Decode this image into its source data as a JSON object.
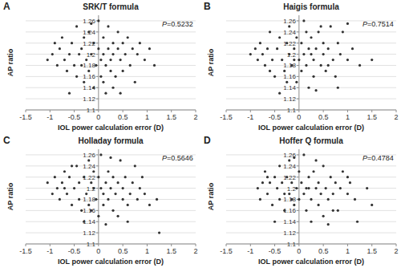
{
  "chart_data": [
    {
      "type": "scatter",
      "panel_label": "A",
      "title": "SRK/T formula",
      "annotation": "P=0.5232",
      "x_label": "IOL power calculation error (D)",
      "y_label": "AP ratio",
      "color": "#333333",
      "marker": "circle",
      "grid": true,
      "xlim": [
        -1.5,
        2
      ],
      "xticks": [
        -1.5,
        -1,
        -0.5,
        0,
        0.5,
        1,
        1.5,
        2
      ],
      "ylim": [
        1.1,
        1.27
      ],
      "yticks": [
        1.1,
        1.12,
        1.14,
        1.16,
        1.18,
        1.2,
        1.22,
        1.24,
        1.26
      ],
      "x": [
        -1.05,
        -0.95,
        -0.9,
        -0.85,
        -0.8,
        -0.75,
        -0.7,
        -0.65,
        -0.6,
        -0.55,
        -0.5,
        -0.45,
        -0.45,
        -0.4,
        -0.35,
        -0.3,
        -0.3,
        -0.25,
        -0.2,
        -0.2,
        -0.15,
        -0.1,
        -0.1,
        -0.05,
        0.0,
        0.0,
        0.05,
        0.05,
        0.1,
        0.1,
        0.15,
        0.15,
        0.2,
        0.2,
        0.25,
        0.25,
        0.3,
        0.3,
        0.35,
        0.4,
        0.4,
        0.45,
        0.5,
        0.5,
        0.55,
        0.6,
        0.65,
        0.7,
        0.75,
        0.8,
        0.85,
        0.95,
        1.05,
        1.15,
        -0.6,
        0.3,
        -0.15,
        0.45,
        -0.35,
        0.1
      ],
      "values": [
        1.19,
        1.2,
        1.22,
        1.18,
        1.21,
        1.23,
        1.19,
        1.17,
        1.2,
        1.22,
        1.18,
        1.25,
        1.16,
        1.2,
        1.21,
        1.15,
        1.23,
        1.19,
        1.24,
        1.17,
        1.2,
        1.22,
        1.14,
        1.18,
        1.21,
        1.26,
        1.19,
        1.16,
        1.23,
        1.2,
        1.18,
        1.13,
        1.21,
        1.25,
        1.19,
        1.17,
        1.22,
        1.2,
        1.16,
        1.21,
        1.24,
        1.19,
        1.22,
        1.17,
        1.2,
        1.23,
        1.18,
        1.21,
        1.15,
        1.2,
        1.22,
        1.19,
        1.21,
        1.18,
        1.13,
        1.14,
        1.255,
        1.13,
        1.18,
        1.15
      ]
    },
    {
      "type": "scatter",
      "panel_label": "B",
      "title": "Haigis formula",
      "annotation": "P=0.7514",
      "x_label": "IOL power calculation error (D)",
      "y_label": "AP ratio",
      "color": "#333333",
      "marker": "circle",
      "grid": true,
      "xlim": [
        -1.5,
        2
      ],
      "xticks": [
        -1.5,
        -1,
        -0.5,
        0,
        0.5,
        1,
        1.5,
        2
      ],
      "ylim": [
        1.1,
        1.27
      ],
      "yticks": [
        1.1,
        1.12,
        1.14,
        1.16,
        1.18,
        1.2,
        1.22,
        1.24,
        1.26
      ],
      "x": [
        -1.0,
        -0.9,
        -0.85,
        -0.8,
        -0.7,
        -0.65,
        -0.6,
        -0.55,
        -0.5,
        -0.45,
        -0.4,
        -0.35,
        -0.3,
        -0.25,
        -0.2,
        -0.2,
        -0.15,
        -0.1,
        -0.05,
        -0.05,
        0.0,
        0.05,
        0.05,
        0.1,
        0.1,
        0.15,
        0.2,
        0.2,
        0.25,
        0.3,
        0.3,
        0.35,
        0.4,
        0.45,
        0.5,
        0.5,
        0.55,
        0.6,
        0.65,
        0.7,
        0.75,
        0.8,
        0.85,
        0.9,
        1.0,
        1.1,
        1.25,
        1.5,
        -0.4,
        0.35,
        0.8,
        -0.25,
        0.15,
        -0.6,
        0.6,
        1.0,
        -0.1,
        0.45,
        -0.75,
        0.25
      ],
      "values": [
        1.2,
        1.21,
        1.19,
        1.22,
        1.18,
        1.21,
        1.24,
        1.19,
        1.16,
        1.21,
        1.23,
        1.19,
        1.17,
        1.22,
        1.2,
        1.25,
        1.18,
        1.21,
        1.15,
        1.23,
        1.19,
        1.22,
        1.17,
        1.2,
        1.26,
        1.18,
        1.21,
        1.14,
        1.23,
        1.19,
        1.16,
        1.21,
        1.24,
        1.18,
        1.2,
        1.22,
        1.17,
        1.21,
        1.25,
        1.19,
        1.16,
        1.22,
        1.2,
        1.24,
        1.19,
        1.21,
        1.18,
        1.19,
        1.13,
        1.135,
        1.14,
        1.15,
        1.24,
        1.17,
        1.18,
        1.255,
        1.19,
        1.25,
        1.2,
        1.2
      ]
    },
    {
      "type": "scatter",
      "panel_label": "C",
      "title": "Holladay formula",
      "annotation": "P=0.5646",
      "x_label": "IOL power calculation error (D)",
      "y_label": "AP ratio",
      "color": "#333333",
      "marker": "circle",
      "grid": true,
      "xlim": [
        -1.5,
        2
      ],
      "xticks": [
        -1.5,
        -1,
        -0.5,
        0,
        0.5,
        1,
        1.5,
        2
      ],
      "ylim": [
        1.1,
        1.27
      ],
      "yticks": [
        1.1,
        1.12,
        1.14,
        1.16,
        1.18,
        1.2,
        1.22,
        1.24,
        1.26
      ],
      "x": [
        -1.05,
        -0.95,
        -0.9,
        -0.85,
        -0.8,
        -0.75,
        -0.7,
        -0.65,
        -0.6,
        -0.55,
        -0.5,
        -0.45,
        -0.4,
        -0.4,
        -0.35,
        -0.3,
        -0.25,
        -0.2,
        -0.2,
        -0.15,
        -0.1,
        -0.1,
        -0.05,
        0.0,
        0.0,
        0.05,
        0.05,
        0.1,
        0.1,
        0.15,
        0.2,
        0.2,
        0.25,
        0.3,
        0.3,
        0.35,
        0.4,
        0.45,
        0.5,
        0.5,
        0.55,
        0.6,
        0.65,
        0.7,
        0.75,
        0.8,
        0.85,
        0.95,
        1.05,
        1.2,
        1.25,
        0.6,
        -0.3,
        0.15,
        -0.55,
        0.4,
        -0.15,
        0.25,
        -0.7,
        0.9
      ],
      "values": [
        1.21,
        1.19,
        1.22,
        1.2,
        1.18,
        1.21,
        1.23,
        1.19,
        1.22,
        1.17,
        1.2,
        1.24,
        1.21,
        1.18,
        1.16,
        1.22,
        1.19,
        1.25,
        1.17,
        1.21,
        1.2,
        1.23,
        1.18,
        1.22,
        1.15,
        1.2,
        1.26,
        1.19,
        1.17,
        1.21,
        1.23,
        1.18,
        1.2,
        1.16,
        1.22,
        1.19,
        1.21,
        1.25,
        1.18,
        1.2,
        1.22,
        1.17,
        1.19,
        1.21,
        1.24,
        1.18,
        1.2,
        1.19,
        1.17,
        1.18,
        1.12,
        1.14,
        1.14,
        1.135,
        1.24,
        1.15,
        1.16,
        1.255,
        1.2,
        1.22
      ]
    },
    {
      "type": "scatter",
      "panel_label": "D",
      "title": "Hoffer Q formula",
      "annotation": "P=0.4784",
      "x_label": "IOL power calculation error (D)",
      "y_label": "AP ratio",
      "color": "#333333",
      "marker": "circle",
      "grid": true,
      "xlim": [
        -1.5,
        2
      ],
      "xticks": [
        -1.5,
        -1,
        -0.5,
        0,
        0.5,
        1,
        1.5,
        2
      ],
      "ylim": [
        1.1,
        1.27
      ],
      "yticks": [
        1.1,
        1.12,
        1.14,
        1.16,
        1.18,
        1.2,
        1.22,
        1.24,
        1.26
      ],
      "x": [
        -0.85,
        -0.8,
        -0.75,
        -0.7,
        -0.65,
        -0.6,
        -0.55,
        -0.5,
        -0.45,
        -0.4,
        -0.4,
        -0.35,
        -0.3,
        -0.25,
        -0.2,
        -0.2,
        -0.15,
        -0.1,
        -0.05,
        0.0,
        0.0,
        0.05,
        0.1,
        0.1,
        0.15,
        0.2,
        0.2,
        0.25,
        0.3,
        0.35,
        0.4,
        0.4,
        0.45,
        0.5,
        0.55,
        0.6,
        0.65,
        0.7,
        0.75,
        0.8,
        0.85,
        0.9,
        1.0,
        1.05,
        1.15,
        1.2,
        1.4,
        1.5,
        -0.5,
        0.25,
        0.6,
        -0.1,
        0.35,
        -0.65,
        0.15,
        0.7,
        -0.3,
        0.5,
        1.0,
        -0.15
      ],
      "values": [
        1.2,
        1.18,
        1.21,
        1.23,
        1.19,
        1.21,
        1.17,
        1.22,
        1.2,
        1.24,
        1.18,
        1.21,
        1.16,
        1.22,
        1.19,
        1.25,
        1.21,
        1.17,
        1.2,
        1.23,
        1.18,
        1.21,
        1.19,
        1.26,
        1.16,
        1.22,
        1.2,
        1.18,
        1.23,
        1.2,
        1.17,
        1.21,
        1.19,
        1.24,
        1.2,
        1.18,
        1.22,
        1.19,
        1.21,
        1.16,
        1.2,
        1.23,
        1.19,
        1.21,
        1.18,
        1.14,
        1.2,
        1.17,
        1.14,
        1.14,
        1.135,
        1.255,
        1.25,
        1.22,
        1.2,
        1.16,
        1.19,
        1.15,
        1.22,
        1.18
      ]
    }
  ]
}
